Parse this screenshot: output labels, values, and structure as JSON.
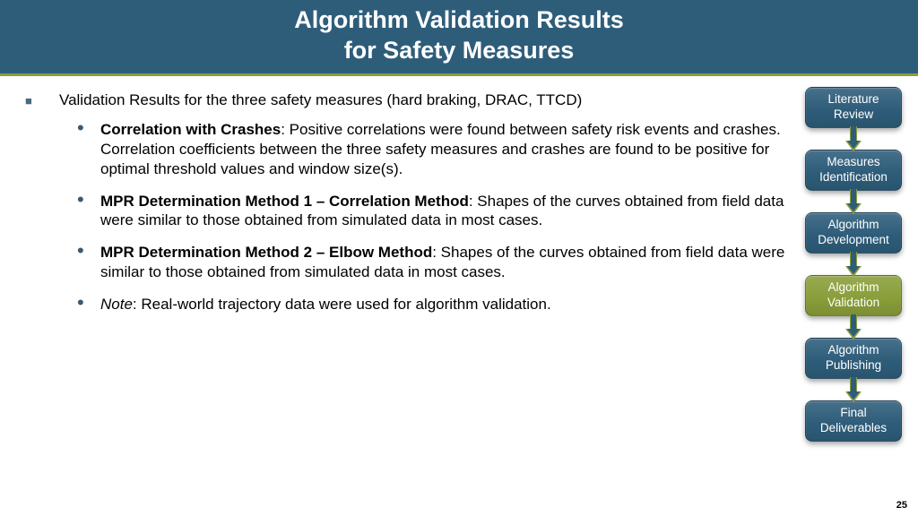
{
  "header": {
    "line1": "Algorithm Validation Results",
    "line2": "for Safety Measures",
    "bg_color": "#2e5d7a",
    "accent_color": "#8a9e3a",
    "text_color": "#ffffff",
    "title_fontsize": 27
  },
  "content": {
    "lead": "Validation Results for the three safety measures (hard braking, DRAC, TTCD)",
    "items": [
      {
        "bold": "Correlation with Crashes",
        "rest": ": Positive correlations were found between safety risk events and crashes. Correlation coefficients between the three safety measures and crashes are found to be positive for optimal threshold values and window size(s)."
      },
      {
        "bold": "MPR Determination Method 1 – Correlation Method",
        "rest": ": Shapes of the curves obtained from field data were similar to those obtained from simulated data in most cases."
      },
      {
        "bold": "MPR Determination Method  2 – Elbow Method",
        "rest": ": Shapes of the curves obtained from field data were similar to those obtained from simulated data in most cases."
      },
      {
        "italic": "Note",
        "rest": ": Real-world trajectory data were used for algorithm validation."
      }
    ],
    "body_fontsize": 17,
    "text_color": "#000000"
  },
  "sidebar": {
    "steps": [
      {
        "label": "Literature Review",
        "bg": "#2e5d7a",
        "active": false
      },
      {
        "label": "Measures Identification",
        "bg": "#2e5d7a",
        "active": false
      },
      {
        "label": "Algorithm Development",
        "bg": "#2e5d7a",
        "active": false
      },
      {
        "label": "Algorithm Validation",
        "bg": "#8a9e3a",
        "active": true
      },
      {
        "label": "Algorithm Publishing",
        "bg": "#2e5d7a",
        "active": false
      },
      {
        "label": "Final Deliverables",
        "bg": "#2e5d7a",
        "active": false
      }
    ],
    "step_fontsize": 13.5,
    "step_radius": 8,
    "arrow_shaft_color": "#2e5d7a",
    "arrow_edge_color": "#8a9e3a"
  },
  "page_number": "25"
}
